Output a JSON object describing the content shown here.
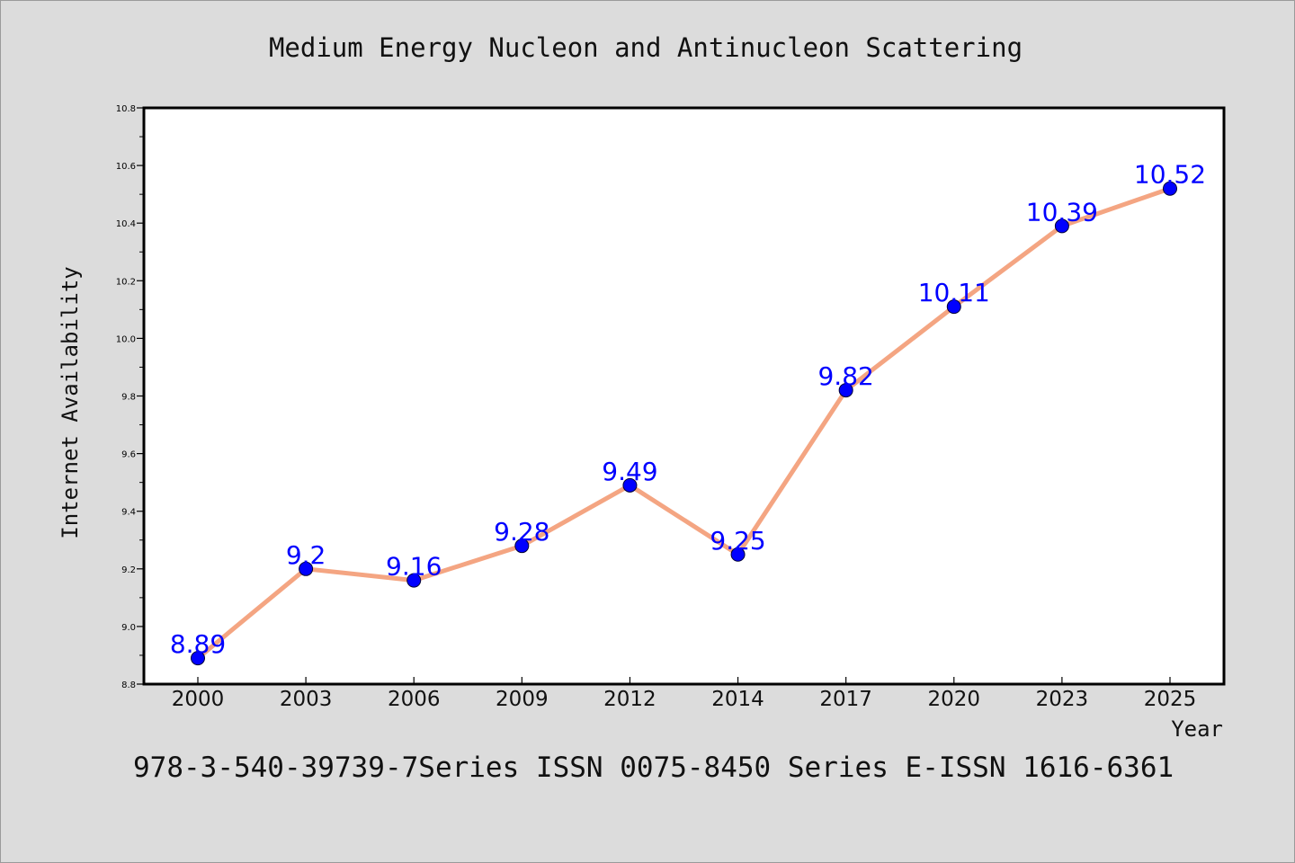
{
  "chart_data": {
    "type": "line",
    "title": "Medium Energy Nucleon and Antinucleon Scattering",
    "xlabel": "Year",
    "ylabel": "Internet Availability",
    "categories": [
      "2000",
      "2003",
      "2006",
      "2009",
      "2012",
      "2014",
      "2017",
      "2020",
      "2023",
      "2025"
    ],
    "series": [
      {
        "values": [
          8.89,
          9.2,
          9.16,
          9.28,
          9.49,
          9.25,
          9.82,
          10.11,
          10.39,
          10.52
        ],
        "labels": [
          "8.89",
          "9.2",
          "9.16",
          "9.28",
          "9.49",
          "9.25",
          "9.82",
          "10.11",
          "10.39",
          "10.52"
        ]
      }
    ],
    "ylim": [
      8.8,
      10.8
    ],
    "yticks": [
      "8.8",
      "9.0",
      "9.2",
      "9.4",
      "9.6",
      "9.8",
      "10.0",
      "10.2",
      "10.4",
      "10.6",
      "10.8"
    ],
    "grid": false,
    "colors": {
      "line": "#f4a582",
      "marker": "#0000ff",
      "label": "#0000ff",
      "background": "#dcdcdc",
      "plot_background": "#ffffff"
    }
  },
  "footer": {
    "text": "978-3-540-39739-7Series ISSN 0075-8450 Series E-ISSN 1616-6361"
  }
}
